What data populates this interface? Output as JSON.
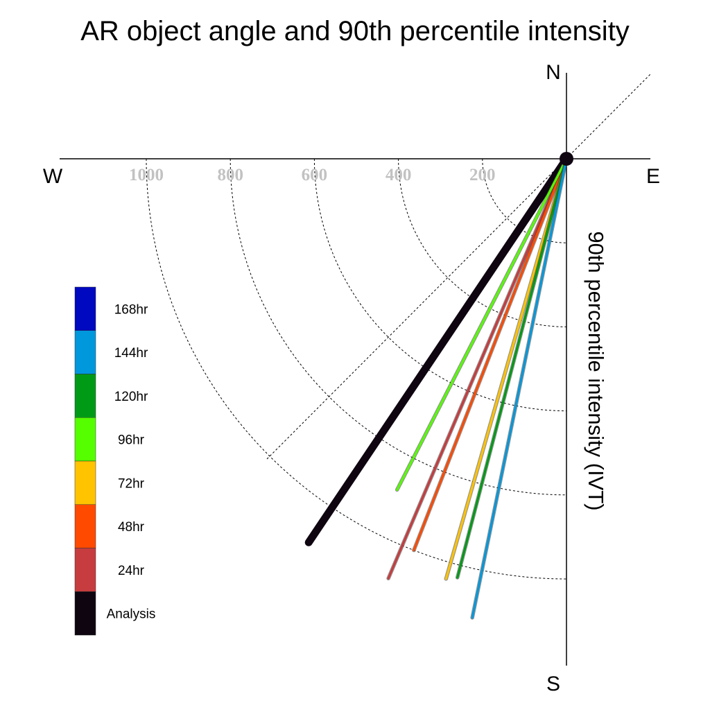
{
  "chart_data": {
    "type": "polar",
    "title": "AR object angle and 90th percentile intensity",
    "radial_label": "90th percentile intensity (IVT)",
    "compass": {
      "north": "N",
      "south": "S",
      "east": "E",
      "west": "W"
    },
    "rings": [
      200,
      400,
      600,
      800,
      1000
    ],
    "ring_labels": [
      "200",
      "400",
      "600",
      "800",
      "1000"
    ],
    "series": [
      {
        "name": "Analysis",
        "color": "#0e0510",
        "angle_deg": 213.9,
        "value": 1100
      },
      {
        "name": "24hr",
        "color": "#c73c3e",
        "angle_deg": 203.0,
        "value": 1085
      },
      {
        "name": "48hr",
        "color": "#ff4a00",
        "angle_deg": 201.3,
        "value": 1000
      },
      {
        "name": "72hr",
        "color": "#ffc300",
        "angle_deg": 196.0,
        "value": 1040
      },
      {
        "name": "96hr",
        "color": "#55ff00",
        "angle_deg": 207.1,
        "value": 885
      },
      {
        "name": "120hr",
        "color": "#009a17",
        "angle_deg": 194.6,
        "value": 1030
      },
      {
        "name": "144hr",
        "color": "#0098dd",
        "angle_deg": 191.6,
        "value": 1115
      }
    ],
    "legend": [
      {
        "label": "168hr",
        "color": "#0008c0"
      },
      {
        "label": "144hr",
        "color": "#0098dd"
      },
      {
        "label": "120hr",
        "color": "#009a17"
      },
      {
        "label": "96hr",
        "color": "#55ff00"
      },
      {
        "label": "72hr",
        "color": "#ffc300"
      },
      {
        "label": "48hr",
        "color": "#ff4a00"
      },
      {
        "label": "24hr",
        "color": "#c73c3e"
      },
      {
        "label": "Analysis",
        "color": "#0e0510"
      }
    ]
  }
}
